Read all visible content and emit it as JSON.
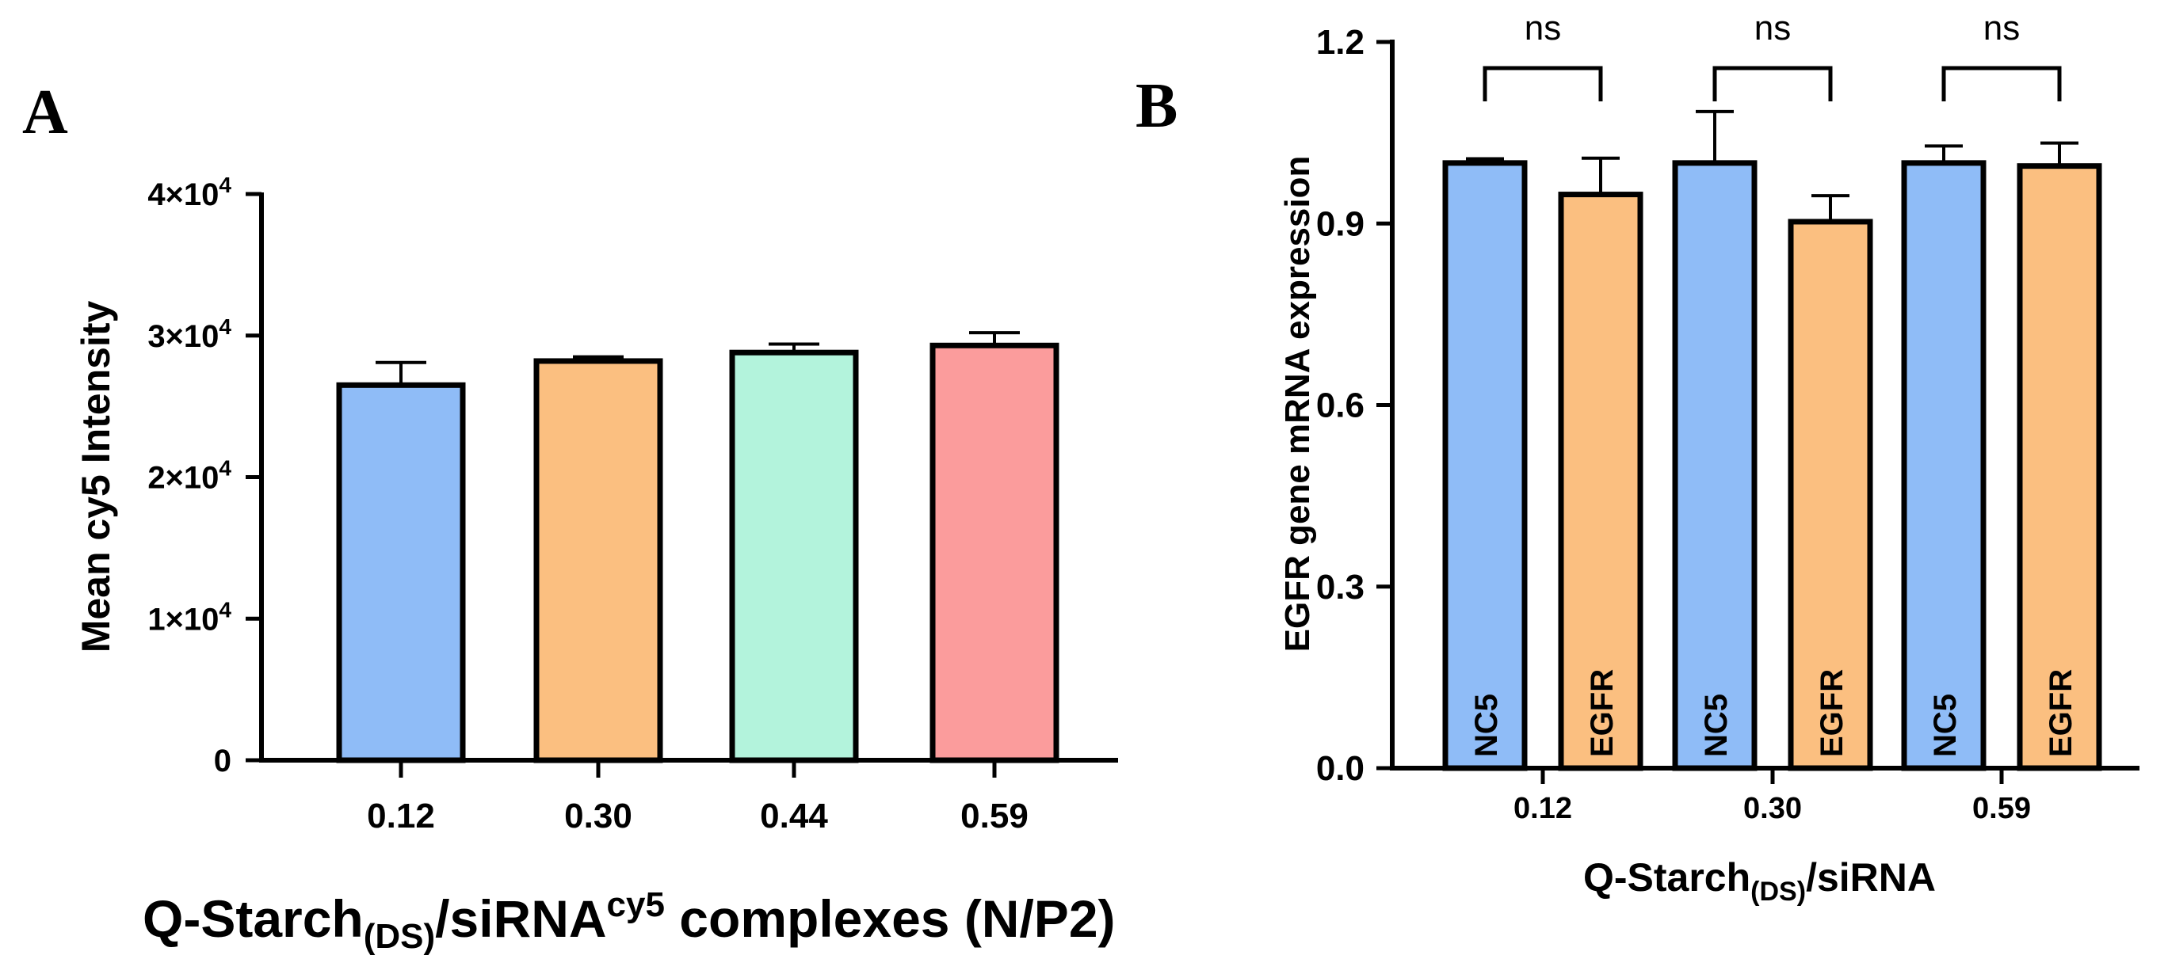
{
  "chart_data": [
    {
      "panel_label": "A",
      "type": "bar",
      "title": "",
      "categories": [
        "0.12",
        "0.30",
        "0.44",
        "0.59"
      ],
      "values": [
        26500,
        28200,
        28800,
        29300
      ],
      "errors": [
        1600,
        300,
        600,
        900
      ],
      "colors": [
        "#8fbcf7",
        "#fbbf80",
        "#b3f3dc",
        "#fb9c9c"
      ],
      "ylim": [
        0,
        40000
      ],
      "yticks": [
        {
          "value": 0,
          "base": "0",
          "exp": ""
        },
        {
          "value": 10000,
          "base": "1×10",
          "exp": "4"
        },
        {
          "value": 20000,
          "base": "2×10",
          "exp": "4"
        },
        {
          "value": 30000,
          "base": "3×10",
          "exp": "4"
        },
        {
          "value": 40000,
          "base": "4×10",
          "exp": "4"
        }
      ],
      "ylabel": "Mean cy5 Intensity",
      "xlabel": {
        "main": "Q-Starch",
        "sub": "(DS)",
        "mid": "/siRNA",
        "sup": "cy5",
        "tail": " complexes (N/P2)"
      }
    },
    {
      "panel_label": "B",
      "type": "bar",
      "title": "",
      "categories": [
        "0.12",
        "0.30",
        "0.59"
      ],
      "series": [
        {
          "name": "NC5",
          "color": "#8fbcf7",
          "values": [
            1.0,
            1.0,
            1.0
          ],
          "errors": [
            0.007,
            0.085,
            0.028
          ]
        },
        {
          "name": "EGFR",
          "color": "#fbbf80",
          "values": [
            0.948,
            0.903,
            0.995
          ],
          "errors": [
            0.06,
            0.043,
            0.038
          ]
        }
      ],
      "significance": [
        "ns",
        "ns",
        "ns"
      ],
      "ylim": [
        0,
        1.2
      ],
      "yticks": [
        "0.0",
        "0.3",
        "0.6",
        "0.9",
        "1.2"
      ],
      "ylabel": "EGFR gene mRNA expression",
      "xlabel": {
        "main": "Q-Starch",
        "sub": "(DS)",
        "tail": "/siRNA"
      }
    }
  ]
}
